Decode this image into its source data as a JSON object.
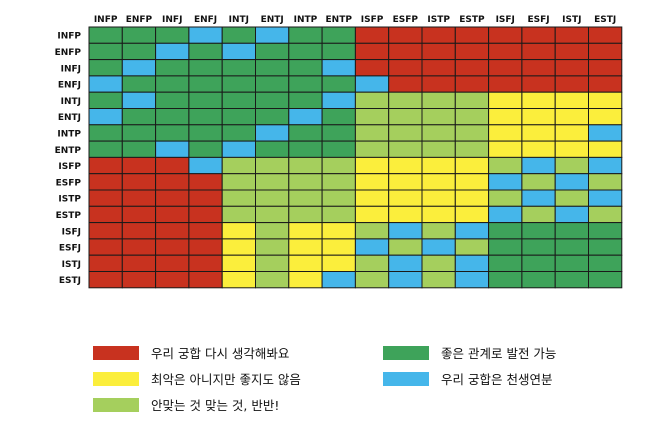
{
  "colors": {
    "red": "#c8321f",
    "green": "#3ea35a",
    "yellow": "#fbee3c",
    "light_green": "#a5cf5d",
    "blue": "#45b6ea",
    "grid_line": "#1a1a1a"
  },
  "legend": [
    {
      "key": "R",
      "color": "red",
      "label": "우리 궁합 다시 생각해봐요"
    },
    {
      "key": "G",
      "color": "green",
      "label": "좋은 관계로 발전 가능"
    },
    {
      "key": "Y",
      "color": "yellow",
      "label": "최악은 아니지만 좋지도 않음"
    },
    {
      "key": "B",
      "color": "blue",
      "label": "우리 궁합은 천생연분"
    },
    {
      "key": "L",
      "color": "light_green",
      "label": "안맞는 것 맞는 것, 반반!"
    }
  ],
  "chart_data": {
    "type": "heatmap",
    "columns": [
      "INFP",
      "ENFP",
      "INFJ",
      "ENFJ",
      "INTJ",
      "ENTJ",
      "INTP",
      "ENTP",
      "ISFP",
      "ESFP",
      "ISTP",
      "ESTP",
      "ISFJ",
      "ESFJ",
      "ISTJ",
      "ESTJ"
    ],
    "rows": [
      "INFP",
      "ENFP",
      "INFJ",
      "ENFJ",
      "INTJ",
      "ENTJ",
      "INTP",
      "ENTP",
      "ISFP",
      "ESFP",
      "ISTP",
      "ESTP",
      "ISFJ",
      "ESFJ",
      "ISTJ",
      "ESTJ"
    ],
    "cells": [
      [
        "G",
        "G",
        "G",
        "B",
        "G",
        "B",
        "G",
        "G",
        "R",
        "R",
        "R",
        "R",
        "R",
        "R",
        "R",
        "R"
      ],
      [
        "G",
        "G",
        "B",
        "G",
        "B",
        "G",
        "G",
        "G",
        "R",
        "R",
        "R",
        "R",
        "R",
        "R",
        "R",
        "R"
      ],
      [
        "G",
        "B",
        "G",
        "G",
        "G",
        "G",
        "G",
        "B",
        "R",
        "R",
        "R",
        "R",
        "R",
        "R",
        "R",
        "R"
      ],
      [
        "B",
        "G",
        "G",
        "G",
        "G",
        "G",
        "G",
        "G",
        "B",
        "R",
        "R",
        "R",
        "R",
        "R",
        "R",
        "R"
      ],
      [
        "G",
        "B",
        "G",
        "G",
        "G",
        "G",
        "G",
        "B",
        "L",
        "L",
        "L",
        "L",
        "Y",
        "Y",
        "Y",
        "Y"
      ],
      [
        "B",
        "G",
        "G",
        "G",
        "G",
        "G",
        "B",
        "G",
        "L",
        "L",
        "L",
        "L",
        "Y",
        "Y",
        "Y",
        "Y"
      ],
      [
        "G",
        "G",
        "G",
        "G",
        "G",
        "B",
        "G",
        "G",
        "L",
        "L",
        "L",
        "L",
        "Y",
        "Y",
        "Y",
        "B"
      ],
      [
        "G",
        "G",
        "B",
        "G",
        "B",
        "G",
        "G",
        "G",
        "L",
        "L",
        "L",
        "L",
        "Y",
        "Y",
        "Y",
        "Y"
      ],
      [
        "R",
        "R",
        "R",
        "B",
        "L",
        "L",
        "L",
        "L",
        "Y",
        "Y",
        "Y",
        "Y",
        "L",
        "B",
        "L",
        "B"
      ],
      [
        "R",
        "R",
        "R",
        "R",
        "L",
        "L",
        "L",
        "L",
        "Y",
        "Y",
        "Y",
        "Y",
        "B",
        "L",
        "B",
        "L"
      ],
      [
        "R",
        "R",
        "R",
        "R",
        "L",
        "L",
        "L",
        "L",
        "Y",
        "Y",
        "Y",
        "Y",
        "L",
        "B",
        "L",
        "B"
      ],
      [
        "R",
        "R",
        "R",
        "R",
        "L",
        "L",
        "L",
        "L",
        "Y",
        "Y",
        "Y",
        "Y",
        "B",
        "L",
        "B",
        "L"
      ],
      [
        "R",
        "R",
        "R",
        "R",
        "Y",
        "L",
        "Y",
        "Y",
        "L",
        "B",
        "L",
        "B",
        "G",
        "G",
        "G",
        "G"
      ],
      [
        "R",
        "R",
        "R",
        "R",
        "Y",
        "L",
        "Y",
        "Y",
        "B",
        "L",
        "B",
        "L",
        "G",
        "G",
        "G",
        "G"
      ],
      [
        "R",
        "R",
        "R",
        "R",
        "Y",
        "L",
        "Y",
        "Y",
        "L",
        "B",
        "L",
        "B",
        "G",
        "G",
        "G",
        "G"
      ],
      [
        "R",
        "R",
        "R",
        "R",
        "Y",
        "L",
        "Y",
        "B",
        "L",
        "B",
        "L",
        "B",
        "G",
        "G",
        "G",
        "G"
      ]
    ]
  }
}
